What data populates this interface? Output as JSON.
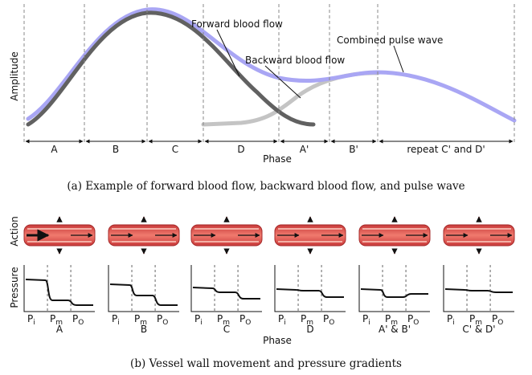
{
  "panel_a": {
    "y_label": "Amplitude",
    "annotations": [
      "Forward blood flow",
      "Backward blood flow",
      "Combined pulse wave"
    ],
    "segments": [
      "A",
      "B",
      "C",
      "D",
      "A'",
      "B'",
      "repeat C' and D'"
    ],
    "x_label": "Phase",
    "caption": "(a)  Example of forward blood flow, backward blood flow, and pulse wave"
  },
  "panel_b": {
    "action_label": "Action",
    "pressure_label": "Pressure",
    "pressure_ticks": [
      {
        "main": "P",
        "sub": "i"
      },
      {
        "main": "P",
        "sub": "m"
      },
      {
        "main": "P",
        "sub": "O"
      }
    ],
    "panels": [
      "A",
      "B",
      "C",
      "D",
      "A' & B'",
      "C' & D'"
    ],
    "x_label": "Phase",
    "caption": "(b)  Vessel wall movement and pressure gradients"
  }
}
